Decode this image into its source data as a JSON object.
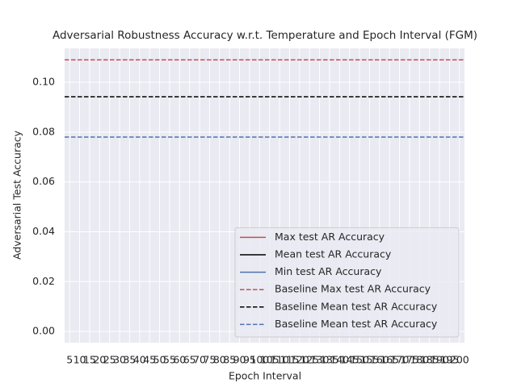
{
  "chart_data": {
    "type": "line",
    "title": "Adversarial Robustness Accuracy w.r.t. Temperature and Epoch Interval (FGM)",
    "xlabel": "Epoch Interval",
    "ylabel": "Adversarial Test Accuracy",
    "categories": [
      5,
      10,
      15,
      20,
      25,
      30,
      35,
      40,
      45,
      50,
      55,
      60,
      65,
      70,
      75,
      80,
      85,
      90,
      95,
      100,
      105,
      110,
      115,
      120,
      125,
      130,
      135,
      140,
      145,
      150,
      155,
      160,
      165,
      170,
      175,
      180,
      185,
      190,
      195,
      200
    ],
    "ylim": [
      -0.0045,
      0.1136
    ],
    "yticks": [
      {
        "value": 0,
        "label": "0.00"
      },
      {
        "value": 0.02,
        "label": "0.02"
      },
      {
        "value": 0.04,
        "label": "0.04"
      },
      {
        "value": 0.06,
        "label": "0.06"
      },
      {
        "value": 0.08,
        "label": "0.08"
      },
      {
        "value": 0.1,
        "label": "0.10"
      }
    ],
    "grid": true,
    "legend": "lower right",
    "series": [
      {
        "name": "Max test AR Accuracy",
        "color": "#c44e52",
        "dash": false,
        "values": [
          null,
          null,
          null,
          null,
          null,
          null,
          null,
          null,
          null,
          null,
          null,
          null,
          null,
          null,
          null,
          null,
          null,
          null,
          null,
          null,
          null,
          null,
          null,
          null,
          null,
          null,
          null,
          null,
          null,
          null,
          null,
          null,
          null,
          null,
          null,
          null,
          null,
          null,
          null,
          null
        ]
      },
      {
        "name": "Mean test AR Accuracy",
        "color": "#000000",
        "dash": false,
        "values": [
          null,
          null,
          null,
          null,
          null,
          null,
          null,
          null,
          null,
          null,
          null,
          null,
          null,
          null,
          null,
          null,
          null,
          null,
          null,
          null,
          null,
          null,
          null,
          null,
          null,
          null,
          null,
          null,
          null,
          null,
          null,
          null,
          null,
          null,
          null,
          null,
          null,
          null,
          null,
          null
        ]
      },
      {
        "name": "Min test AR Accuracy",
        "color": "#4c72b0",
        "dash": false,
        "values": [
          null,
          null,
          null,
          null,
          null,
          null,
          null,
          null,
          null,
          null,
          null,
          null,
          null,
          null,
          null,
          null,
          null,
          null,
          null,
          null,
          null,
          null,
          null,
          null,
          null,
          null,
          null,
          null,
          null,
          null,
          null,
          null,
          null,
          null,
          null,
          null,
          null,
          null,
          null,
          null
        ]
      },
      {
        "name": "Baseline Max test AR Accuracy",
        "color": "#c44e52",
        "dash": true,
        "value": 0.109
      },
      {
        "name": "Baseline Mean test AR Accuracy",
        "color": "#000000",
        "dash": true,
        "value": 0.0942
      },
      {
        "name": "Baseline Mean test AR Accuracy",
        "color": "#4c72b0",
        "dash": true,
        "value": 0.078
      }
    ]
  }
}
